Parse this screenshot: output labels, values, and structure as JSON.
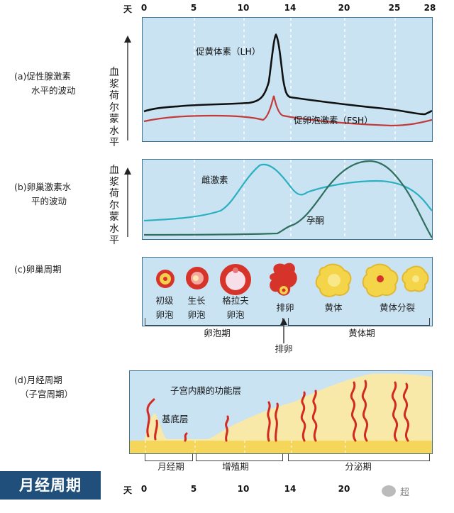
{
  "day_axis": {
    "unit": "天",
    "ticks": [
      "0",
      "5",
      "10",
      "14",
      "20",
      "25",
      "28"
    ],
    "ticks_bottom": [
      "0",
      "5",
      "10",
      "14",
      "20"
    ]
  },
  "panel_a": {
    "label_lines": [
      "(a)促性腺激素",
      "水平的波动"
    ],
    "y_label": "血浆荷尔蒙水平",
    "lh_label": "促黄体素（LH）",
    "fsh_label": "促卵泡激素（FSH）",
    "lh_color": "#111111",
    "fsh_color": "#c23b3b"
  },
  "panel_b": {
    "label_lines": [
      "(b)卵巢激素水",
      "平的波动"
    ],
    "y_label": "血浆荷尔蒙水平",
    "estrogen_label": "雌激素",
    "progesterone_label": "孕酮",
    "estrogen_color": "#2bb0c0",
    "progesterone_color": "#2e6f5e"
  },
  "panel_c": {
    "label": "(c)卵巢周期",
    "stages": [
      {
        "line1": "初级",
        "line2": "卵泡"
      },
      {
        "line1": "生长",
        "line2": "卵泡"
      },
      {
        "line1": "格拉夫",
        "line2": "卵泡"
      },
      {
        "line1": "排卵",
        "line2": ""
      },
      {
        "line1": "黄体",
        "line2": ""
      },
      {
        "line1": "黄体分裂",
        "line2": ""
      }
    ],
    "phase_follicular": "卵泡期",
    "phase_luteal": "黄体期",
    "ovulation": "排卵"
  },
  "panel_d": {
    "label_lines": [
      "(d)月经周期",
      "（子宫周期）"
    ],
    "functional_layer": "子宫内膜的功能层",
    "basal_layer": "基底层",
    "phase_menstrual": "月经期",
    "phase_proliferative": "增殖期",
    "phase_secretory": "分泌期"
  },
  "title": "月经周期",
  "watermark": "超"
}
